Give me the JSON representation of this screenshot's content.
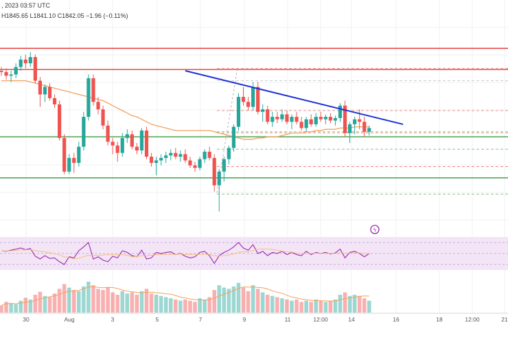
{
  "header": {
    "date_text": ", 2023 03:57 UTC",
    "ohlc_text": "H1845.65  L1841.10  C1842.05  −1.96 (−0.11%)"
  },
  "colors": {
    "up": "#26a69a",
    "down": "#ef5350",
    "resistance": "#e53935",
    "support": "#43a047",
    "trendline": "#1e2fd6",
    "ma": "#f3a05b",
    "rsi": "#9c27b0",
    "rsi_band": "#f3e5f5",
    "grid": "#eef0f3"
  },
  "chart_data": {
    "type": "candlestick",
    "x_labels": [
      "30",
      "Aug",
      "3",
      "5",
      "7",
      "9",
      "11",
      "12:00",
      "14",
      "16",
      "18",
      "12:00",
      "21"
    ],
    "y_range": [
      1775,
      1935
    ],
    "candles": [
      [
        1903,
        1906,
        1899,
        1902
      ],
      [
        1902,
        1905,
        1896,
        1899
      ],
      [
        1899,
        1903,
        1894,
        1900
      ],
      [
        1900,
        1909,
        1897,
        1906
      ],
      [
        1906,
        1915,
        1903,
        1912
      ],
      [
        1912,
        1916,
        1905,
        1909
      ],
      [
        1909,
        1918,
        1906,
        1914
      ],
      [
        1914,
        1916,
        1893,
        1895
      ],
      [
        1895,
        1898,
        1874,
        1884
      ],
      [
        1884,
        1892,
        1878,
        1890
      ],
      [
        1890,
        1893,
        1879,
        1881
      ],
      [
        1881,
        1884,
        1873,
        1876
      ],
      [
        1876,
        1879,
        1847,
        1849
      ],
      [
        1849,
        1852,
        1820,
        1822
      ],
      [
        1822,
        1836,
        1820,
        1833
      ],
      [
        1833,
        1837,
        1821,
        1829
      ],
      [
        1829,
        1846,
        1826,
        1842
      ],
      [
        1842,
        1870,
        1839,
        1866
      ],
      [
        1866,
        1900,
        1863,
        1897
      ],
      [
        1897,
        1900,
        1875,
        1878
      ],
      [
        1878,
        1882,
        1868,
        1872
      ],
      [
        1872,
        1875,
        1856,
        1859
      ],
      [
        1859,
        1863,
        1843,
        1846
      ],
      [
        1846,
        1849,
        1836,
        1843
      ],
      [
        1843,
        1846,
        1830,
        1837
      ],
      [
        1837,
        1853,
        1834,
        1849
      ],
      [
        1849,
        1856,
        1845,
        1852
      ],
      [
        1852,
        1855,
        1840,
        1842
      ],
      [
        1842,
        1845,
        1836,
        1839
      ],
      [
        1839,
        1857,
        1836,
        1855
      ],
      [
        1855,
        1858,
        1832,
        1834
      ],
      [
        1834,
        1837,
        1826,
        1829
      ],
      [
        1829,
        1834,
        1819,
        1831
      ],
      [
        1831,
        1836,
        1827,
        1833
      ],
      [
        1833,
        1838,
        1829,
        1835
      ],
      [
        1835,
        1840,
        1831,
        1837
      ],
      [
        1837,
        1841,
        1832,
        1834
      ],
      [
        1834,
        1839,
        1830,
        1836
      ],
      [
        1836,
        1840,
        1829,
        1831
      ],
      [
        1831,
        1834,
        1825,
        1827
      ],
      [
        1827,
        1830,
        1822,
        1825
      ],
      [
        1825,
        1834,
        1823,
        1832
      ],
      [
        1832,
        1840,
        1829,
        1838
      ],
      [
        1838,
        1842,
        1831,
        1833
      ],
      [
        1833,
        1836,
        1806,
        1811
      ],
      [
        1811,
        1824,
        1790,
        1822
      ],
      [
        1822,
        1834,
        1814,
        1832
      ],
      [
        1832,
        1843,
        1828,
        1841
      ],
      [
        1841,
        1860,
        1838,
        1858
      ],
      [
        1858,
        1885,
        1855,
        1882
      ],
      [
        1882,
        1890,
        1875,
        1878
      ],
      [
        1878,
        1882,
        1871,
        1874
      ],
      [
        1874,
        1894,
        1871,
        1890
      ],
      [
        1890,
        1894,
        1868,
        1870
      ],
      [
        1870,
        1876,
        1862,
        1872
      ],
      [
        1872,
        1875,
        1860,
        1862
      ],
      [
        1862,
        1870,
        1858,
        1866
      ],
      [
        1866,
        1870,
        1861,
        1864
      ],
      [
        1864,
        1872,
        1862,
        1868
      ],
      [
        1868,
        1871,
        1860,
        1862
      ],
      [
        1862,
        1868,
        1856,
        1866
      ],
      [
        1866,
        1870,
        1860,
        1862
      ],
      [
        1862,
        1866,
        1855,
        1857
      ],
      [
        1857,
        1866,
        1854,
        1864
      ],
      [
        1864,
        1868,
        1858,
        1860
      ],
      [
        1860,
        1869,
        1858,
        1866
      ],
      [
        1866,
        1870,
        1862,
        1864
      ],
      [
        1864,
        1868,
        1860,
        1866
      ],
      [
        1866,
        1869,
        1861,
        1863
      ],
      [
        1863,
        1867,
        1859,
        1865
      ],
      [
        1865,
        1877,
        1862,
        1875
      ],
      [
        1875,
        1879,
        1850,
        1853
      ],
      [
        1853,
        1862,
        1845,
        1860
      ],
      [
        1860,
        1866,
        1852,
        1864
      ],
      [
        1864,
        1872,
        1856,
        1862
      ],
      [
        1862,
        1866,
        1850,
        1854
      ],
      [
        1854,
        1859,
        1851,
        1857
      ]
    ],
    "ma_values": [
      1895,
      1895,
      1895,
      1895,
      1895,
      1895,
      1894,
      1893,
      1892,
      1891,
      1890,
      1889,
      1888,
      1887,
      1886,
      1885,
      1884,
      1883,
      1882,
      1881,
      1880,
      1879,
      1877,
      1875,
      1873,
      1871,
      1869,
      1867,
      1866,
      1864,
      1862,
      1860,
      1859,
      1858,
      1857,
      1856,
      1855,
      1855,
      1855,
      1855,
      1855,
      1855,
      1855,
      1855,
      1854,
      1853,
      1852,
      1851,
      1850,
      1849,
      1848,
      1848,
      1848,
      1849,
      1849,
      1850,
      1850,
      1850,
      1851,
      1852,
      1853,
      1853,
      1853,
      1854,
      1854,
      1855,
      1855,
      1856,
      1856,
      1856,
      1857,
      1857,
      1857,
      1858,
      1858,
      1858,
      1858
    ],
    "levels": {
      "resistance": [
        1921,
        1904
      ],
      "support": [
        1850,
        1817
      ],
      "dashed_red": [
        1905,
        1871,
        1853,
        1826
      ],
      "dashed_green": [
        1854,
        1840,
        1804
      ],
      "dashed_grey": [
        1895
      ]
    },
    "trendline": {
      "start": [
        38,
        1903
      ],
      "end": [
        83,
        1860
      ]
    },
    "rsi": [
      55,
      54,
      56,
      58,
      60,
      57,
      59,
      45,
      40,
      46,
      41,
      42,
      35,
      30,
      44,
      42,
      55,
      62,
      70,
      40,
      44,
      38,
      35,
      45,
      42,
      55,
      52,
      46,
      44,
      56,
      40,
      42,
      52,
      50,
      52,
      53,
      48,
      50,
      45,
      42,
      44,
      52,
      54,
      46,
      32,
      46,
      52,
      56,
      62,
      70,
      60,
      56,
      66,
      50,
      54,
      46,
      52,
      50,
      54,
      48,
      52,
      48,
      46,
      54,
      48,
      52,
      50,
      52,
      49,
      51,
      58,
      42,
      52,
      54,
      50,
      44,
      50
    ],
    "volume": [
      12,
      18,
      16,
      14,
      20,
      25,
      22,
      30,
      35,
      28,
      26,
      32,
      40,
      48,
      42,
      38,
      36,
      44,
      52,
      46,
      40,
      38,
      42,
      34,
      30,
      36,
      32,
      34,
      30,
      36,
      40,
      32,
      30,
      28,
      26,
      24,
      22,
      20,
      22,
      20,
      18,
      24,
      22,
      26,
      38,
      46,
      42,
      40,
      44,
      50,
      42,
      36,
      46,
      40,
      34,
      30,
      28,
      26,
      24,
      22,
      20,
      22,
      18,
      20,
      18,
      22,
      20,
      18,
      20,
      22,
      30,
      34,
      28,
      30,
      28,
      24,
      20
    ]
  }
}
